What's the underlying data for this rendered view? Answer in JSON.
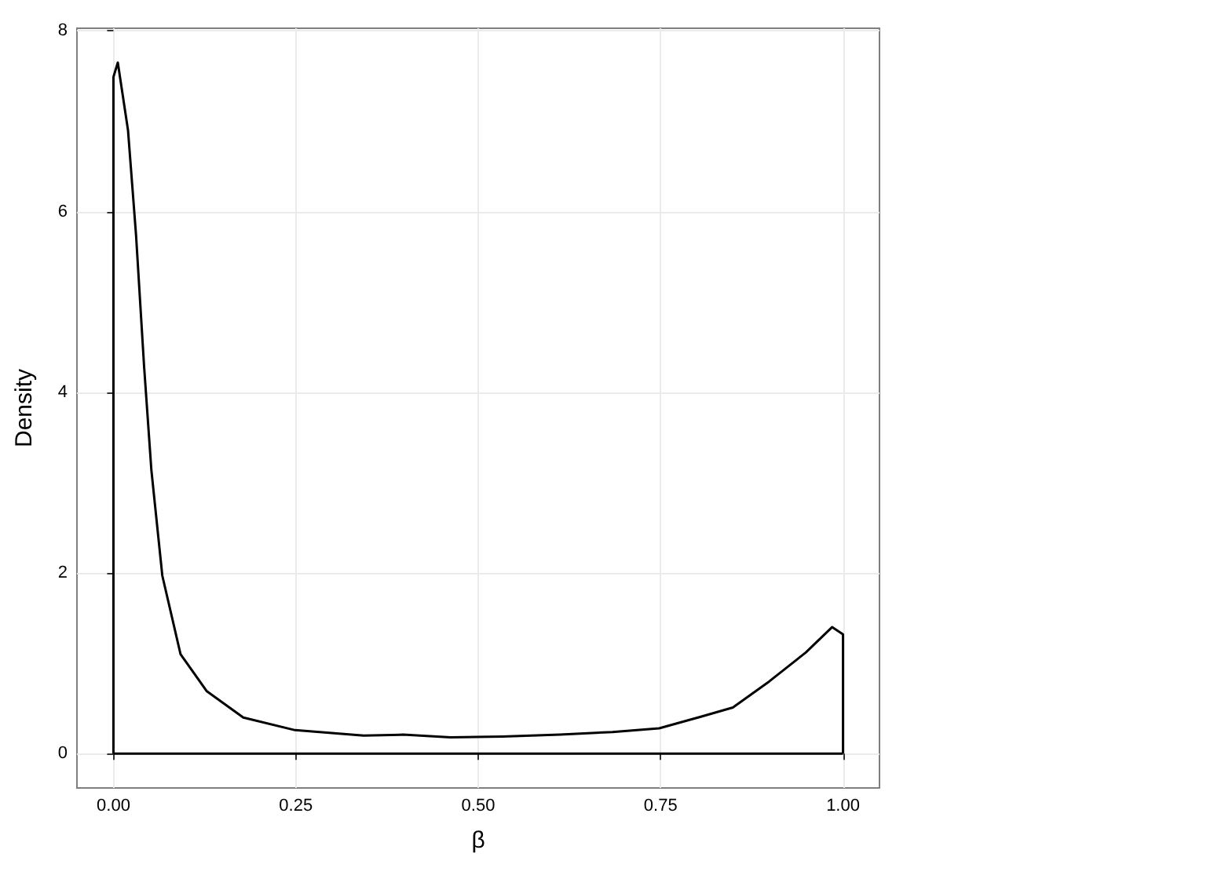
{
  "chart_data": {
    "type": "line",
    "xlabel": "β",
    "ylabel": "Density",
    "grid": true,
    "marker": "none",
    "line_style": "solid",
    "series": [
      {
        "color": "#000000",
        "x": [
          0,
          0,
          0.006,
          0.02,
          0.031,
          0.042,
          0.052,
          0.067,
          0.092,
          0.128,
          0.178,
          0.249,
          0.343,
          0.397,
          0.462,
          0.533,
          0.612,
          0.684,
          0.748,
          0.806,
          0.849,
          0.899,
          0.949,
          0.985,
          1,
          1
        ],
        "values": [
          0,
          7.49,
          7.65,
          6.9,
          5.74,
          4.29,
          3.14,
          1.97,
          1.1,
          0.69,
          0.4,
          0.26,
          0.2,
          0.21,
          0.18,
          0.19,
          0.21,
          0.24,
          0.28,
          0.41,
          0.51,
          0.8,
          1.12,
          1.4,
          1.32,
          0
        ]
      },
      {
        "color": "#000000",
        "x": [
          0,
          1
        ],
        "values": [
          0,
          0
        ]
      }
    ],
    "xlim": [
      -0.05,
      1.05
    ],
    "ylim": [
      -0.38,
      8.03
    ],
    "xticks": [
      {
        "value": 0,
        "label": "0.00"
      },
      {
        "value": 0.25,
        "label": "0.25"
      },
      {
        "value": 0.5,
        "label": "0.50"
      },
      {
        "value": 0.75,
        "label": "0.75"
      },
      {
        "value": 1,
        "label": "1.00"
      }
    ],
    "yticks": [
      0,
      2,
      4,
      6,
      8
    ]
  }
}
